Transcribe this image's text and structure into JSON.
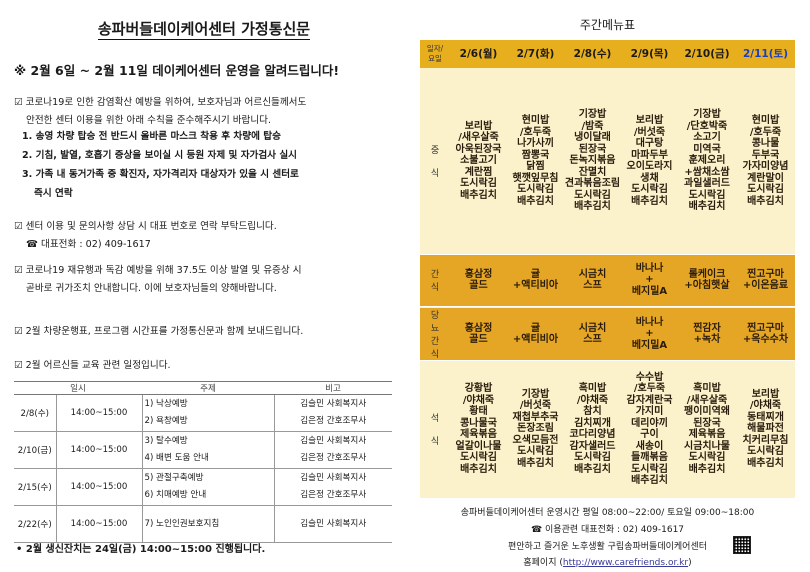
{
  "letter": {
    "title": "송파버들데이케어센터 가정통신문",
    "headline": "※ 2월 6일 ~ 2월 11일 데이케어센터 운영을 알려드립니다!",
    "p1_line1": "☑ 코로나19로 인한 감염확산 예방을 위하여, 보호자님과 어르신들께서도",
    "p1_line2": "안전한 센터 이용을 위한 아래 수칙을 준수해주시기 바랍니다.",
    "rules": [
      "1. 송영 차량 탑승 전 반드시 올바른 마스크 착용 후 차량에 탑승",
      "2. 기침, 발열, 호흡기 증상을 보이실 시 등원 자제 및 자가검사 실시",
      "3. 가족 내 동거가족 중 확진자, 자가격리자 대상자가 있을 시 센터로",
      "즉시 연락"
    ],
    "p2_line1": "☑ 센터 이용 및 문의사항 상담 시 대표 번호로 연락 부탁드립니다.",
    "p2_line2": "☎ 대표전화 : 02) 409-1617",
    "p3_line1": "☑ 코로나19 재유행과 독감 예방을 위해 37.5도 이상 발열 및 유증상 시",
    "p3_line2": "곧바로 귀가조치 안내합니다. 이에 보호자님들의 양해바랍니다.",
    "p4": "☑ 2월 차량운행표, 프로그램 시간표를 가정통신문과 함께 보내드립니다.",
    "p5": "☑ 2월 어르신들 교육 관련 일정입니다.",
    "schedule_headers": [
      "일시",
      "주제",
      "비고"
    ],
    "schedule": [
      {
        "date": "2/8(수)",
        "time": "14:00~15:00",
        "topics": [
          "1) 낙상예방",
          "2) 욕창예방"
        ],
        "notes": [
          "김슬민 사회복지사",
          "김은정 간호조무사"
        ]
      },
      {
        "date": "2/10(금)",
        "time": "14:00~15:00",
        "topics": [
          "3) 탈수예방",
          "4) 배변 도움 안내"
        ],
        "notes": [
          "김슬민 사회복지사",
          "김은정 간호조무사"
        ]
      },
      {
        "date": "2/15(수)",
        "time": "14:00~15:00",
        "topics": [
          "5) 관절구축예방",
          "6) 치매예방 안내"
        ],
        "notes": [
          "김슬민 사회복지사",
          "김은정 간호조무사"
        ]
      },
      {
        "date": "2/22(수)",
        "time": "14:00~15:00",
        "topics": [
          "7) 노인인권보호지침"
        ],
        "notes": [
          "김슬민 사회복지사"
        ]
      }
    ],
    "footnote": "• 2월 생신잔치는 24일(금) 14:00~15:00 진행됩니다."
  },
  "menu": {
    "title": "주간메뉴표",
    "corner": [
      "일자/",
      "요일"
    ],
    "days": [
      "2/6(월)",
      "2/7(화)",
      "2/8(수)",
      "2/9(목)",
      "2/10(금)",
      "2/11(토)"
    ],
    "rows": [
      {
        "label": [
          "중",
          "",
          "식"
        ],
        "items": [
          "보리밥\n/새우살죽\n아욱된장국\n소불고기\n계란찜\n도시락김\n배추김치",
          "현미밥\n/호두죽\n나가사끼\n짬뽕국\n닭찜\n햇깻잎무침\n도시락김\n배추김치",
          "기장밥\n/밤죽\n냉이달래\n된장국\n돈녹지볶음\n잔멸치\n견과볶음조림\n도시락김\n배추김치",
          "보리밥\n/버섯죽\n대구탕\n마파두부\n오이도라지\n생채\n도시락김\n배추김치",
          "기장밥\n/단호박죽\n소고기\n미역국\n훈제오리\n+쌈채소쌈\n과일샐러드\n도시락김\n배추김치",
          "현미밥\n/호두죽\n콩나물\n두부국\n가자미양념\n계란말이\n도시락김\n배추김치"
        ]
      },
      {
        "label": [
          "간",
          "식"
        ],
        "items": [
          "홍삼정\n골드",
          "귤\n+액티비아",
          "시금치\n스프",
          "바나나\n+\n베지밀A",
          "롤케이크\n+아침햇살",
          "찐고구마\n+이온음료"
        ]
      },
      {
        "label": [
          "당",
          "뇨",
          "간",
          "식"
        ],
        "items": [
          "홍삼정\n골드",
          "귤\n+액티비아",
          "시금치\n스프",
          "바나나\n+\n베지밀A",
          "찐감자\n+녹차",
          "찐고구마\n+옥수수차"
        ]
      },
      {
        "label": [
          "석",
          "",
          "식"
        ],
        "items": [
          "강황밥\n/야채죽\n황태\n콩나물국\n제육볶음\n얼갈이나물\n도시락김\n배추김치",
          "기장밥\n/버섯죽\n재첩부추국\n돈장조림\n오색모듬전\n도시락김\n배추김치",
          "흑미밥\n/야채죽\n참치\n김치찌개\n코다리양념\n감자샐러드\n도시락김\n배추김치",
          "수수밥\n/호두죽\n감자계란국\n가지미\n데리야끼\n구이\n새송이\n들깨볶음\n도시락김\n배추김치",
          "흑미밥\n/새우살죽\n팽이미역왜\n된장국\n제육볶음\n시금치나물\n도시락김\n배추김치",
          "보리밥\n/야채죽\n동태찌개\n해물파전\n치커리무침\n도시락김\n배추김치"
        ]
      }
    ],
    "colors": {
      "header": "#e7ae1e",
      "orange_row": "#e6a625",
      "cream": "#fbf2cc",
      "saturday": "#1d3fbf"
    }
  },
  "info": {
    "hours": "송파버들데이케어센터 운영시간 평일 08:00~22:00/ 토요일 09:00~18:00",
    "phone": "☎ 이용관련 대표전화 : 02) 409-1617",
    "slogan": "편안하고 즐거운 노후생활 구립송파버들데이케어센터",
    "homepage_label": "홈페이지 (",
    "homepage_url": "http://www.carefriends.or.kr",
    "homepage_end": ")",
    "qr_icon": "qr-code-icon"
  }
}
